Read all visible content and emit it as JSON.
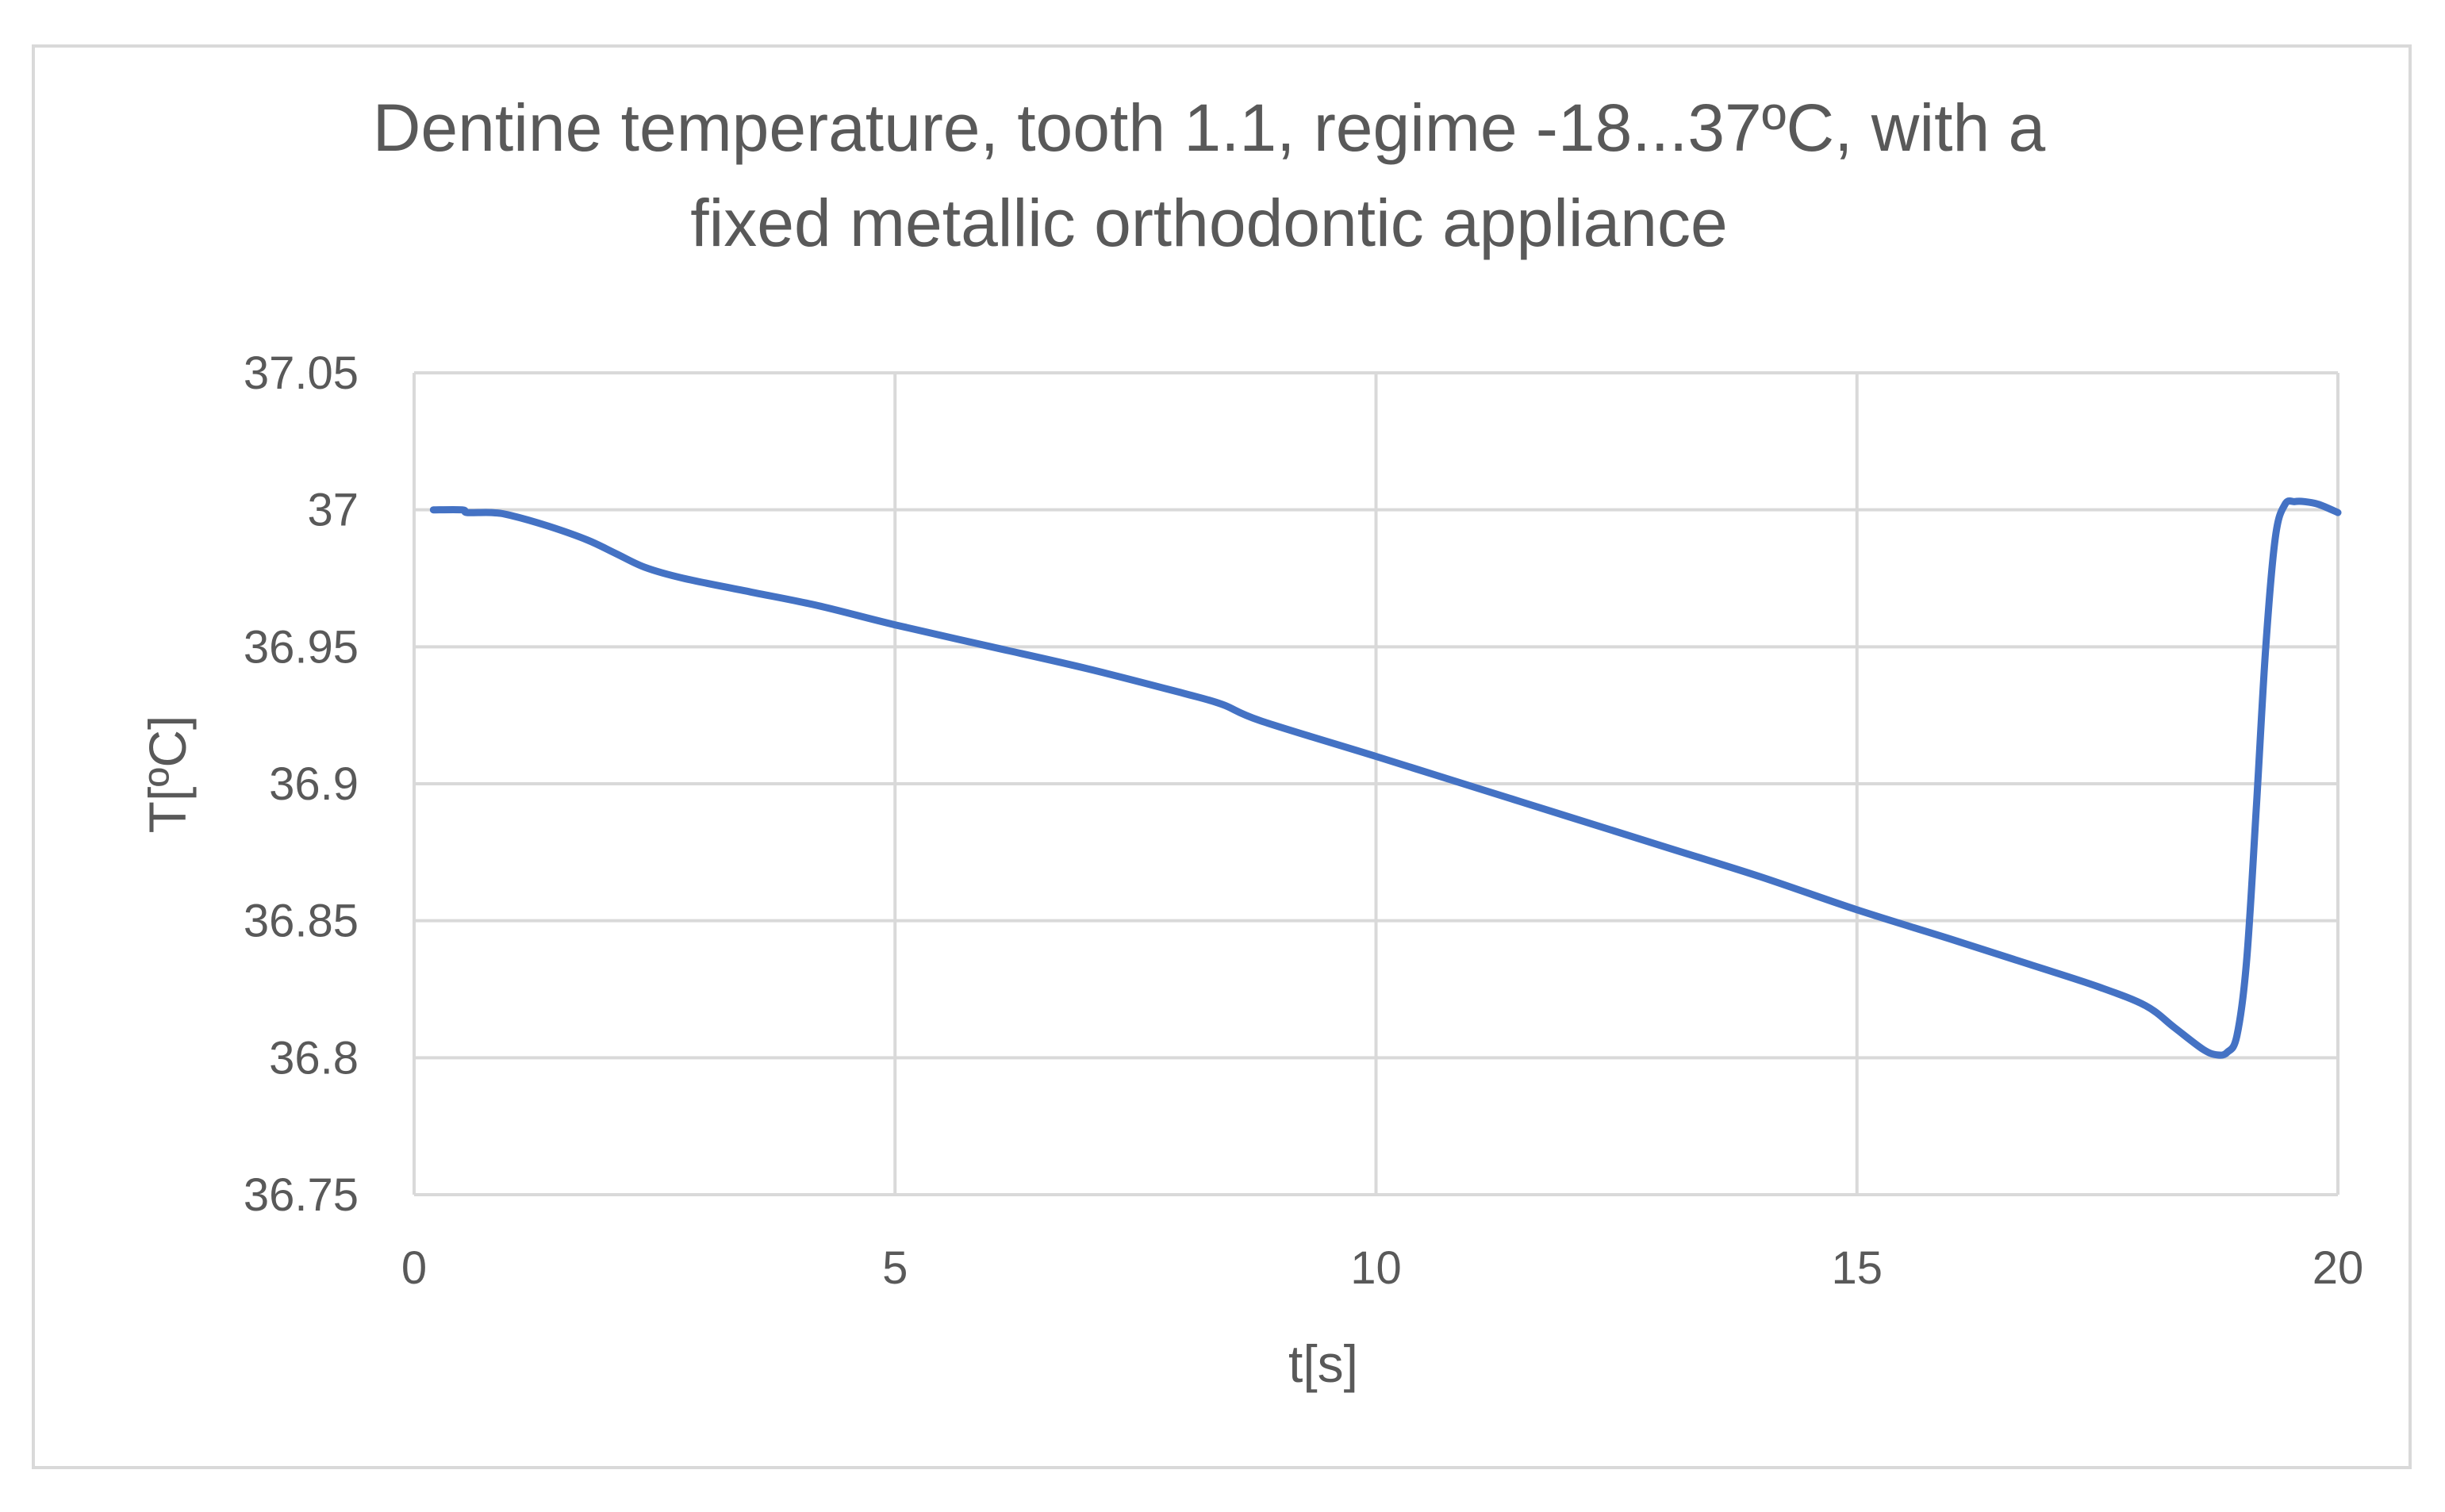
{
  "chart_data": {
    "type": "line",
    "title_lines": [
      "Dentine temperature, tooth 1.1, regime -18...37ºC, with a",
      "fixed metallic orthodontic appliance"
    ],
    "xlabel": "t[s]",
    "ylabel": "T[ºC]",
    "xlim": [
      0,
      20
    ],
    "ylim": [
      36.75,
      37.05
    ],
    "x_ticks": [
      "0",
      "5",
      "10",
      "15",
      "20"
    ],
    "y_ticks": [
      "36.75",
      "36.8",
      "36.85",
      "36.9",
      "36.95",
      "37",
      "37.05"
    ],
    "grid": true,
    "legend": "none",
    "series": [
      {
        "color": "#4472c4",
        "x": [
          0.2,
          0.5,
          0.55,
          0.8,
          1.0,
          1.4,
          1.8,
          2.1,
          2.4,
          2.8,
          3.5,
          4.2,
          5.0,
          6.0,
          7.0,
          8.0,
          8.4,
          8.8,
          10.0,
          11.0,
          12.0,
          13.0,
          14.0,
          15.0,
          16.0,
          16.8,
          17.5,
          18.0,
          18.3,
          18.6,
          18.75,
          18.85,
          18.95,
          19.05,
          19.15,
          19.25,
          19.35,
          19.45,
          19.55,
          19.65,
          19.8,
          20.0
        ],
        "y": [
          37.0,
          37.0,
          36.999,
          36.999,
          36.998,
          36.994,
          36.989,
          36.984,
          36.979,
          36.975,
          36.97,
          36.965,
          36.958,
          36.95,
          36.942,
          36.933,
          36.929,
          36.923,
          36.91,
          36.899,
          36.888,
          36.877,
          36.866,
          36.854,
          36.843,
          36.834,
          36.826,
          36.819,
          36.811,
          36.803,
          36.801,
          36.802,
          36.808,
          36.835,
          36.89,
          36.95,
          36.99,
          37.002,
          37.003,
          37.003,
          37.002,
          36.999
        ]
      }
    ]
  }
}
